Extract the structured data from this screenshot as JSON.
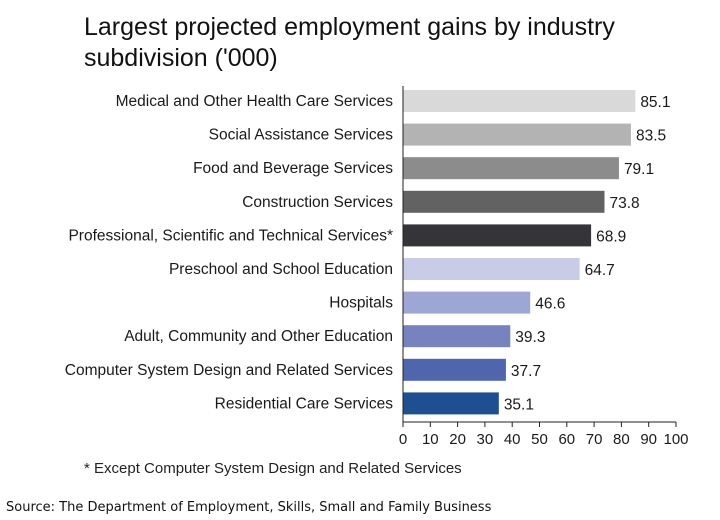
{
  "chart_data": {
    "type": "bar",
    "orientation": "horizontal",
    "title": "Largest projected employment gains by industry subdivision ('000)",
    "categories": [
      "Medical and Other Health Care Services",
      "Social Assistance Services",
      "Food and Beverage Services",
      "Construction Services",
      "Professional, Scientific and Technical Services*",
      "Preschool and School Education",
      "Hospitals",
      "Adult, Community and Other Education",
      "Computer System Design and Related Services",
      "Residential Care Services"
    ],
    "values": [
      85.1,
      83.5,
      79.1,
      73.8,
      68.9,
      64.7,
      46.6,
      39.3,
      37.7,
      35.1
    ],
    "value_labels": [
      "85.1",
      "83.5",
      "79.1",
      "73.8",
      "68.9",
      "64.7",
      "46.6",
      "39.3",
      "37.7",
      "35.1"
    ],
    "bar_colors": [
      "#d9d9d9",
      "#b3b3b3",
      "#8c8c8c",
      "#626262",
      "#353539",
      "#c9cce6",
      "#9ea6d3",
      "#7783bf",
      "#4f66ad",
      "#1f4f93"
    ],
    "xlim": [
      0,
      100
    ],
    "xticks": [
      "0",
      "10",
      "20",
      "30",
      "40",
      "50",
      "60",
      "70",
      "80",
      "90",
      "100"
    ],
    "xlabel": "",
    "ylabel": "",
    "grid": false,
    "legend": "none"
  },
  "footnote": "* Except Computer System Design and Related Services",
  "source": "Source: The Department of Employment, Skills, Small and Family Business"
}
